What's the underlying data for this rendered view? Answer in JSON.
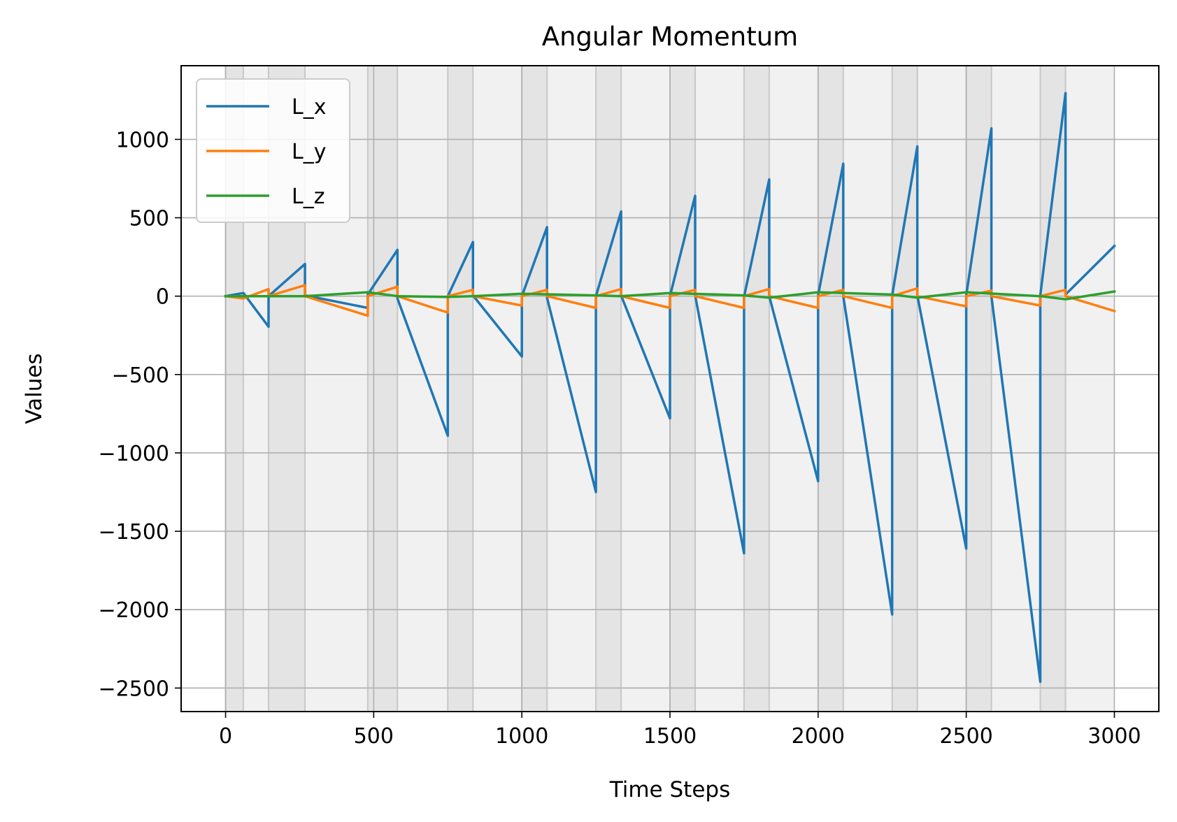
{
  "chart_data": {
    "type": "line",
    "title": "Angular Momentum",
    "xlabel": "Time Steps",
    "ylabel": "Values",
    "xlim": [
      -150,
      3150
    ],
    "ylim": [
      -2650,
      1470
    ],
    "xticks": [
      0,
      500,
      1000,
      1500,
      2000,
      2500,
      3000
    ],
    "yticks": [
      -2500,
      -2000,
      -1500,
      -1000,
      -500,
      0,
      500,
      1000
    ],
    "grid": true,
    "legend_position": "upper-left",
    "background_bands": [
      {
        "x0": 0,
        "x1": 60,
        "shade": "dark"
      },
      {
        "x0": 60,
        "x1": 145,
        "shade": "light"
      },
      {
        "x0": 145,
        "x1": 268,
        "shade": "dark"
      },
      {
        "x0": 268,
        "x1": 480,
        "shade": "light"
      },
      {
        "x0": 480,
        "x1": 580,
        "shade": "dark"
      },
      {
        "x0": 580,
        "x1": 750,
        "shade": "light"
      },
      {
        "x0": 750,
        "x1": 835,
        "shade": "dark"
      },
      {
        "x0": 835,
        "x1": 1000,
        "shade": "light"
      },
      {
        "x0": 1000,
        "x1": 1085,
        "shade": "dark"
      },
      {
        "x0": 1085,
        "x1": 1250,
        "shade": "light"
      },
      {
        "x0": 1250,
        "x1": 1335,
        "shade": "dark"
      },
      {
        "x0": 1335,
        "x1": 1500,
        "shade": "light"
      },
      {
        "x0": 1500,
        "x1": 1585,
        "shade": "dark"
      },
      {
        "x0": 1585,
        "x1": 1750,
        "shade": "light"
      },
      {
        "x0": 1750,
        "x1": 1835,
        "shade": "dark"
      },
      {
        "x0": 1835,
        "x1": 2000,
        "shade": "light"
      },
      {
        "x0": 2000,
        "x1": 2085,
        "shade": "dark"
      },
      {
        "x0": 2085,
        "x1": 2250,
        "shade": "light"
      },
      {
        "x0": 2250,
        "x1": 2335,
        "shade": "dark"
      },
      {
        "x0": 2335,
        "x1": 2500,
        "shade": "light"
      },
      {
        "x0": 2500,
        "x1": 2585,
        "shade": "dark"
      },
      {
        "x0": 2585,
        "x1": 2750,
        "shade": "light"
      },
      {
        "x0": 2750,
        "x1": 2835,
        "shade": "dark"
      },
      {
        "x0": 2835,
        "x1": 3000,
        "shade": "light"
      }
    ],
    "band_colors": {
      "dark": "#e4e4e4",
      "light": "#f1f1f1",
      "edge": "#c8c8c8"
    },
    "series": [
      {
        "name": "L_x",
        "color": "#1f77b4",
        "points": [
          [
            0,
            0
          ],
          [
            60,
            20
          ],
          [
            145,
            -195
          ],
          [
            145,
            0
          ],
          [
            268,
            205
          ],
          [
            268,
            5
          ],
          [
            480,
            -75
          ],
          [
            480,
            10
          ],
          [
            580,
            295
          ],
          [
            580,
            -15
          ],
          [
            750,
            -890
          ],
          [
            750,
            0
          ],
          [
            835,
            345
          ],
          [
            835,
            5
          ],
          [
            1000,
            -385
          ],
          [
            1000,
            0
          ],
          [
            1085,
            440
          ],
          [
            1085,
            -10
          ],
          [
            1250,
            -1250
          ],
          [
            1250,
            0
          ],
          [
            1335,
            540
          ],
          [
            1335,
            5
          ],
          [
            1500,
            -780
          ],
          [
            1500,
            0
          ],
          [
            1585,
            640
          ],
          [
            1585,
            5
          ],
          [
            1750,
            -1640
          ],
          [
            1750,
            -5
          ],
          [
            1835,
            745
          ],
          [
            1835,
            0
          ],
          [
            2000,
            -1180
          ],
          [
            2000,
            5
          ],
          [
            2085,
            845
          ],
          [
            2085,
            0
          ],
          [
            2250,
            -2030
          ],
          [
            2250,
            5
          ],
          [
            2335,
            955
          ],
          [
            2335,
            5
          ],
          [
            2500,
            -1610
          ],
          [
            2500,
            5
          ],
          [
            2585,
            1070
          ],
          [
            2585,
            0
          ],
          [
            2750,
            -2460
          ],
          [
            2750,
            5
          ],
          [
            2835,
            1295
          ],
          [
            2835,
            10
          ],
          [
            3000,
            320
          ]
        ]
      },
      {
        "name": "L_y",
        "color": "#ff7f0e",
        "points": [
          [
            0,
            0
          ],
          [
            60,
            -15
          ],
          [
            145,
            45
          ],
          [
            145,
            0
          ],
          [
            268,
            70
          ],
          [
            268,
            0
          ],
          [
            480,
            -125
          ],
          [
            480,
            0
          ],
          [
            580,
            60
          ],
          [
            580,
            0
          ],
          [
            750,
            -105
          ],
          [
            750,
            0
          ],
          [
            835,
            40
          ],
          [
            835,
            0
          ],
          [
            1000,
            -60
          ],
          [
            1000,
            0
          ],
          [
            1085,
            40
          ],
          [
            1085,
            0
          ],
          [
            1250,
            -75
          ],
          [
            1250,
            0
          ],
          [
            1335,
            45
          ],
          [
            1335,
            0
          ],
          [
            1500,
            -75
          ],
          [
            1500,
            0
          ],
          [
            1585,
            40
          ],
          [
            1585,
            0
          ],
          [
            1750,
            -75
          ],
          [
            1750,
            0
          ],
          [
            1835,
            45
          ],
          [
            1835,
            0
          ],
          [
            2000,
            -75
          ],
          [
            2000,
            0
          ],
          [
            2085,
            40
          ],
          [
            2085,
            0
          ],
          [
            2250,
            -75
          ],
          [
            2250,
            0
          ],
          [
            2335,
            50
          ],
          [
            2335,
            0
          ],
          [
            2500,
            -65
          ],
          [
            2500,
            0
          ],
          [
            2585,
            35
          ],
          [
            2585,
            0
          ],
          [
            2750,
            -60
          ],
          [
            2750,
            0
          ],
          [
            2835,
            40
          ],
          [
            2835,
            0
          ],
          [
            3000,
            -95
          ]
        ]
      },
      {
        "name": "L_z",
        "color": "#2ca02c",
        "points": [
          [
            0,
            0
          ],
          [
            145,
            0
          ],
          [
            268,
            0
          ],
          [
            480,
            25
          ],
          [
            580,
            0
          ],
          [
            750,
            -5
          ],
          [
            835,
            0
          ],
          [
            1000,
            15
          ],
          [
            1250,
            5
          ],
          [
            1335,
            0
          ],
          [
            1500,
            20
          ],
          [
            1750,
            5
          ],
          [
            1835,
            -10
          ],
          [
            2000,
            25
          ],
          [
            2250,
            10
          ],
          [
            2335,
            -10
          ],
          [
            2500,
            25
          ],
          [
            2750,
            0
          ],
          [
            2835,
            -20
          ],
          [
            3000,
            30
          ]
        ]
      }
    ]
  }
}
